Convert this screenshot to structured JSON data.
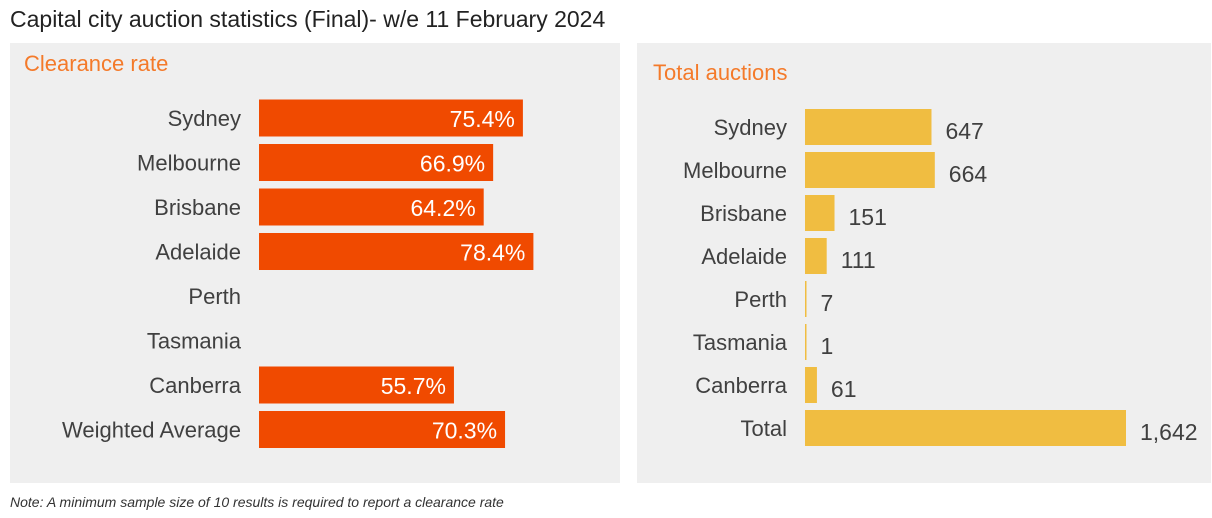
{
  "title": "Capital city auction statistics (Final)- w/e 11 February 2024",
  "note": "Note: A minimum sample size of 10 results is required to report a clearance rate",
  "colors": {
    "clearance_bar": "#f04a00",
    "auction_bar": "#f0bd41",
    "panel_bg": "#efefef",
    "title_accent": "#f47a2a"
  },
  "chart_data": [
    {
      "type": "bar",
      "orientation": "horizontal",
      "title": "Clearance rate",
      "categories": [
        "Sydney",
        "Melbourne",
        "Brisbane",
        "Adelaide",
        "Perth",
        "Tasmania",
        "Canberra",
        "Weighted Average"
      ],
      "values": [
        75.4,
        66.9,
        64.2,
        78.4,
        null,
        null,
        55.7,
        70.3
      ],
      "labels": [
        "75.4%",
        "66.9%",
        "64.2%",
        "78.4%",
        "",
        "",
        "55.7%",
        "70.3%"
      ],
      "xlim": [
        0,
        100
      ],
      "grid": false,
      "legend": "none"
    },
    {
      "type": "bar",
      "orientation": "horizontal",
      "title": "Total auctions",
      "categories": [
        "Sydney",
        "Melbourne",
        "Brisbane",
        "Adelaide",
        "Perth",
        "Tasmania",
        "Canberra",
        "Total"
      ],
      "values": [
        647,
        664,
        151,
        111,
        7,
        1,
        61,
        1642
      ],
      "labels": [
        "647",
        "664",
        "151",
        "111",
        "7",
        "1",
        "61",
        "1,642"
      ],
      "xlim": [
        0,
        1642
      ],
      "grid": false,
      "legend": "none"
    }
  ]
}
